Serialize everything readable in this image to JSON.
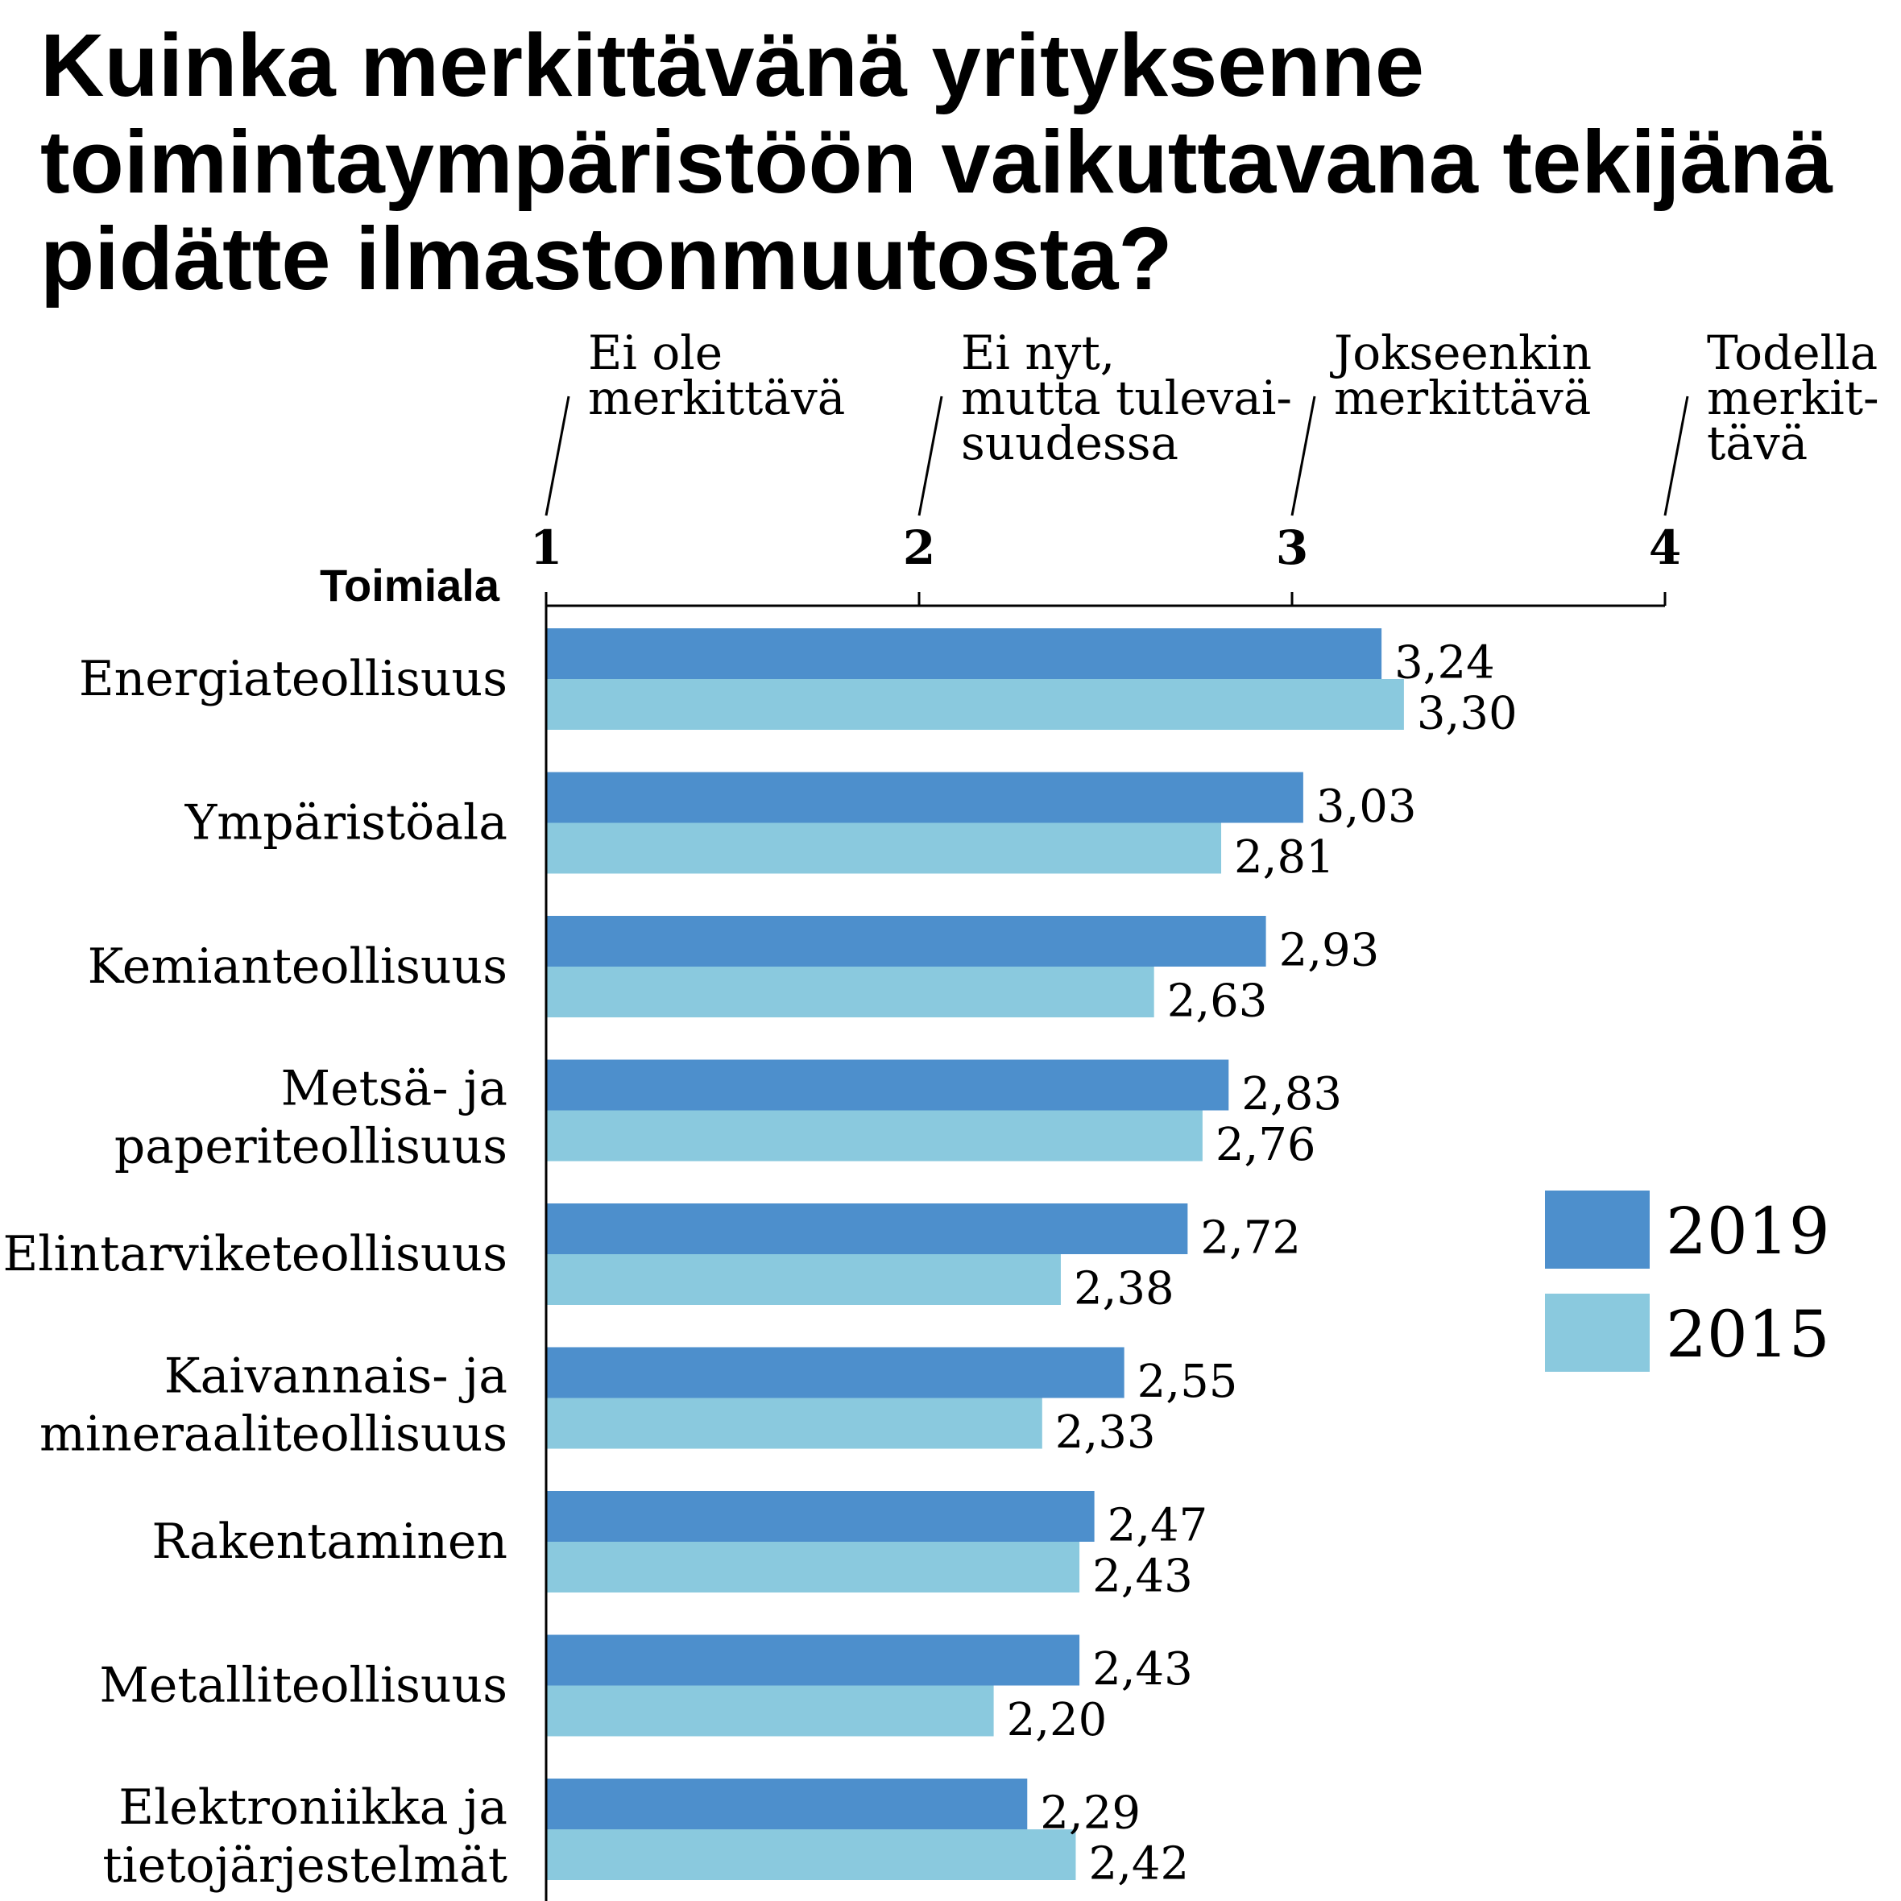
{
  "title": "Kuinka merkittävänä yrityksenne toimintaympäristöön vaikuttavana tekijänä pidätte ilmastonmuutosta?",
  "chart_data": {
    "type": "bar",
    "orientation": "horizontal",
    "category_axis_title": "Toimiala",
    "xlim": [
      1,
      4
    ],
    "ticks": [
      {
        "value": 1,
        "label": "1",
        "description": [
          "Ei ole",
          "merkittävä"
        ]
      },
      {
        "value": 2,
        "label": "2",
        "description": [
          "Ei nyt,",
          "mutta tulevai-",
          "suudessa"
        ]
      },
      {
        "value": 3,
        "label": "3",
        "description": [
          "Jokseenkin",
          "merkittävä"
        ]
      },
      {
        "value": 4,
        "label": "4",
        "description": [
          "Todella",
          "merkit-",
          "tävä"
        ]
      }
    ],
    "categories": [
      [
        "Energiateollisuus"
      ],
      [
        "Ympäristöala"
      ],
      [
        "Kemianteollisuus"
      ],
      [
        "Metsä- ja",
        "paperiteollisuus"
      ],
      [
        "Elintarviketeollisuus"
      ],
      [
        "Kaivannais- ja",
        "mineraaliteollisuus"
      ],
      [
        "Rakentaminen"
      ],
      [
        "Metalliteollisuus"
      ],
      [
        "Elektroniikka ja",
        "tietojärjestelmät"
      ]
    ],
    "series": [
      {
        "name": "2019",
        "color": "#4d8fcc",
        "values": [
          3.24,
          3.03,
          2.93,
          2.83,
          2.72,
          2.55,
          2.47,
          2.43,
          2.29
        ],
        "labels": [
          "3,24",
          "3,03",
          "2,93",
          "2,83",
          "2,72",
          "2,55",
          "2,47",
          "2,43",
          "2,29"
        ]
      },
      {
        "name": "2015",
        "color": "#8ac9de",
        "values": [
          3.3,
          2.81,
          2.63,
          2.76,
          2.38,
          2.33,
          2.43,
          2.2,
          2.42
        ],
        "labels": [
          "3,30",
          "2,81",
          "2,63",
          "2,76",
          "2,38",
          "2,33",
          "2,43",
          "2,20",
          "2,42"
        ]
      }
    ],
    "legend_position": "right",
    "grid": false
  }
}
